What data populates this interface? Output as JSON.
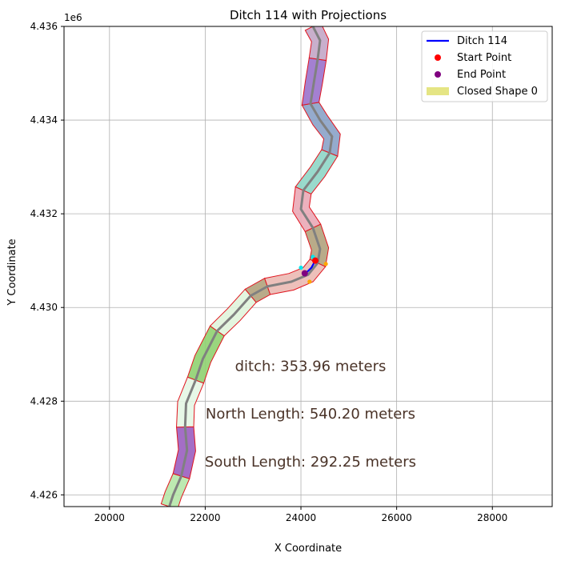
{
  "chart_data": {
    "type": "line",
    "title": "Ditch 114 with Projections",
    "xlabel": "X Coordinate",
    "ylabel": "Y Coordinate",
    "y_offset_label": "1e6",
    "xlim": [
      19050,
      29250
    ],
    "ylim": [
      4425750,
      4436000
    ],
    "x_ticks": [
      20000,
      22000,
      24000,
      26000,
      28000
    ],
    "x_tick_labels": [
      "20000",
      "22000",
      "24000",
      "26000",
      "28000"
    ],
    "y_ticks": [
      4426000,
      4428000,
      4430000,
      4432000,
      4434000,
      4436000
    ],
    "y_tick_labels": [
      "4.426",
      "4.428",
      "4.430",
      "4.432",
      "4.434",
      "4.436"
    ],
    "grid": true,
    "legend_position": "upper-right",
    "legend": [
      {
        "label": "Ditch 114",
        "kind": "line",
        "color": "#0000ff"
      },
      {
        "label": "Start Point",
        "kind": "marker",
        "color": "#ff0000"
      },
      {
        "label": "End Point",
        "kind": "marker",
        "color": "#800080"
      },
      {
        "label": "Closed Shape 0",
        "kind": "patch",
        "color": "#dada50"
      }
    ],
    "annotations": [
      {
        "text": "ditch: 353.96 meters",
        "x": 24200,
        "y": 4428750
      },
      {
        "text": "North Length: 540.20 meters",
        "x": 24200,
        "y": 4427730
      },
      {
        "text": "South Length: 292.25 meters",
        "x": 24200,
        "y": 4426710
      }
    ],
    "channel": {
      "centerline": [
        [
          21250,
          4425750
        ],
        [
          21330,
          4426000
        ],
        [
          21500,
          4426400
        ],
        [
          21620,
          4426950
        ],
        [
          21580,
          4427450
        ],
        [
          21600,
          4427950
        ],
        [
          21800,
          4428450
        ],
        [
          21950,
          4428900
        ],
        [
          22250,
          4429500
        ],
        [
          22600,
          4429850
        ],
        [
          22950,
          4430250
        ],
        [
          23300,
          4430450
        ],
        [
          23800,
          4430550
        ],
        [
          24150,
          4430700
        ],
        [
          24350,
          4430950
        ],
        [
          24400,
          4431250
        ],
        [
          24250,
          4431700
        ],
        [
          24000,
          4432100
        ],
        [
          24050,
          4432500
        ],
        [
          24350,
          4432900
        ],
        [
          24600,
          4433300
        ],
        [
          24650,
          4433650
        ],
        [
          24400,
          4434000
        ],
        [
          24200,
          4434350
        ],
        [
          24270,
          4434800
        ],
        [
          24350,
          4435300
        ],
        [
          24400,
          4435700
        ],
        [
          24250,
          4436000
        ]
      ],
      "half_width": 180,
      "segments": [
        {
          "from": 0,
          "to": 2,
          "color": "#b6e7a8"
        },
        {
          "from": 2,
          "to": 4,
          "color": "#9a5ec0"
        },
        {
          "from": 4,
          "to": 6,
          "color": "#e4f6e4"
        },
        {
          "from": 6,
          "to": 8,
          "color": "#8fd170"
        },
        {
          "from": 8,
          "to": 10,
          "color": "#e0f4dc"
        },
        {
          "from": 10,
          "to": 11,
          "color": "#b1a27c"
        },
        {
          "from": 11,
          "to": 14,
          "color": "#ebb9b2"
        },
        {
          "from": 14,
          "to": 16,
          "color": "#b1a27c"
        },
        {
          "from": 16,
          "to": 18,
          "color": "#eaa8b6"
        },
        {
          "from": 18,
          "to": 20,
          "color": "#8ed6c6"
        },
        {
          "from": 20,
          "to": 23,
          "color": "#8aa2c8"
        },
        {
          "from": 23,
          "to": 25,
          "color": "#9a72cc"
        },
        {
          "from": 25,
          "to": 27,
          "color": "#c3a6c6"
        }
      ]
    },
    "ditch_line": [
      [
        24300,
        4431000
      ],
      [
        24220,
        4430850
      ],
      [
        24100,
        4430730
      ]
    ],
    "start_point": [
      24300,
      4431000
    ],
    "end_point": [
      24080,
      4430730
    ],
    "projection_points": [
      {
        "x": 24250,
        "y": 4431080,
        "color": "#00e5ee"
      },
      {
        "x": 24000,
        "y": 4430850,
        "color": "#00e5ee"
      },
      {
        "x": 24520,
        "y": 4430930,
        "color": "#ffa500"
      },
      {
        "x": 24180,
        "y": 4430550,
        "color": "#ffa500"
      }
    ]
  }
}
